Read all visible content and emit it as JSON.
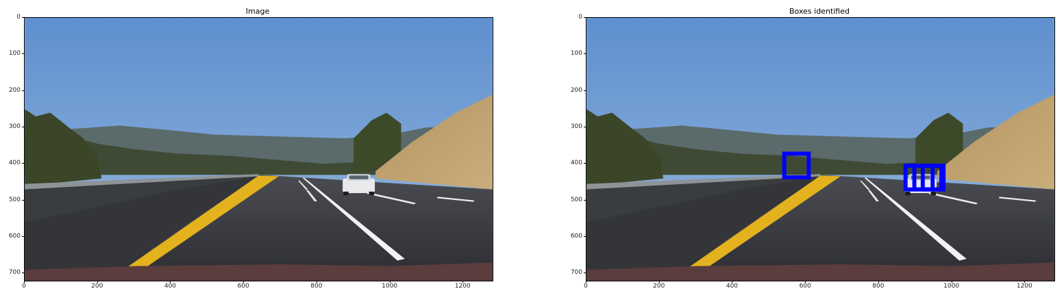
{
  "panels": [
    {
      "title": "Image",
      "x_ticks": [
        "0",
        "200",
        "400",
        "600",
        "800",
        "1000",
        "1200"
      ],
      "y_ticks": [
        "0",
        "100",
        "200",
        "300",
        "400",
        "500",
        "600",
        "700"
      ]
    },
    {
      "title": "Boxes identified",
      "x_ticks": [
        "0",
        "200",
        "400",
        "600",
        "800",
        "1000",
        "1200"
      ],
      "y_ticks": [
        "0",
        "100",
        "200",
        "300",
        "400",
        "500",
        "600",
        "700"
      ]
    }
  ],
  "image": {
    "width": 1280,
    "height": 720
  },
  "detection_box_color": "#0000ff",
  "detection_boxes": [
    {
      "x1": 541,
      "y1": 372,
      "x2": 608,
      "y2": 437
    },
    {
      "x1": 873,
      "y1": 405,
      "x2": 971,
      "y2": 470
    },
    {
      "x1": 897,
      "y1": 405,
      "x2": 947,
      "y2": 470
    },
    {
      "x1": 920,
      "y1": 405,
      "x2": 977,
      "y2": 470
    }
  ]
}
